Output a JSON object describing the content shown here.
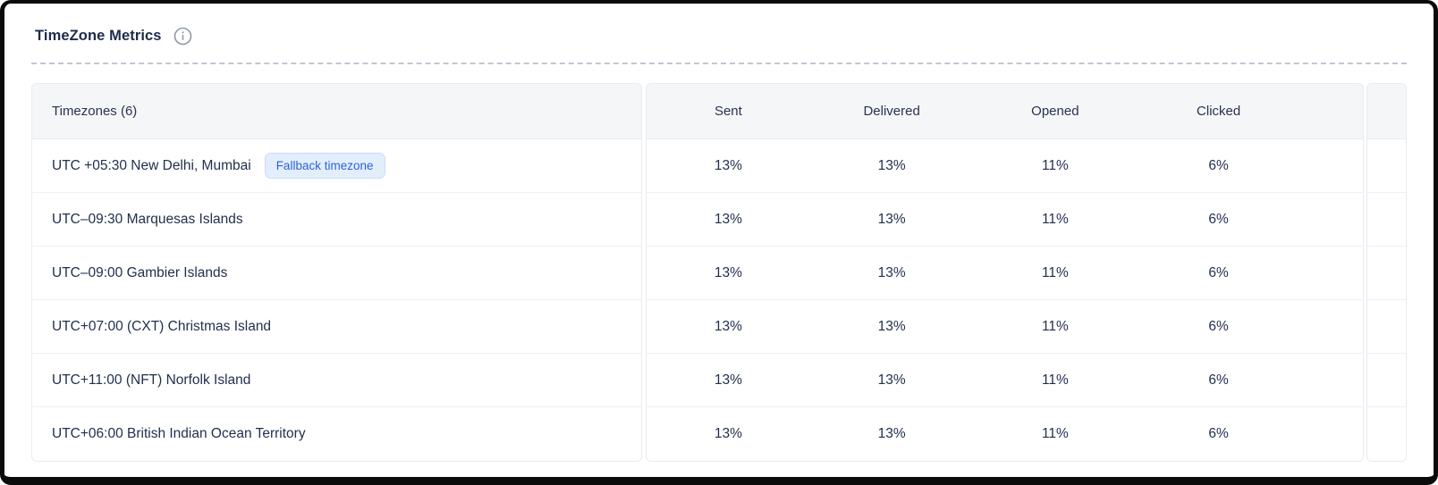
{
  "page": {
    "title": "TimeZone Metrics"
  },
  "table": {
    "timezones_header": "Timezones (6)",
    "columns": [
      "Sent",
      "Delivered",
      "Opened",
      "Clicked"
    ],
    "fallback_badge_label": "Fallback timezone",
    "rows": [
      {
        "timezone": "UTC +05:30 New Delhi, Mumbai",
        "fallback": true,
        "sent": "13%",
        "delivered": "13%",
        "opened": "11%",
        "clicked": "6%"
      },
      {
        "timezone": "UTC–09:30 Marquesas Islands",
        "fallback": false,
        "sent": "13%",
        "delivered": "13%",
        "opened": "11%",
        "clicked": "6%"
      },
      {
        "timezone": "UTC–09:00 Gambier Islands",
        "fallback": false,
        "sent": "13%",
        "delivered": "13%",
        "opened": "11%",
        "clicked": "6%"
      },
      {
        "timezone": "UTC+07:00 (CXT) Christmas Island",
        "fallback": false,
        "sent": "13%",
        "delivered": "13%",
        "opened": "11%",
        "clicked": "6%"
      },
      {
        "timezone": "UTC+11:00 (NFT) Norfolk Island",
        "fallback": false,
        "sent": "13%",
        "delivered": "13%",
        "opened": "11%",
        "clicked": "6%"
      },
      {
        "timezone": "UTC+06:00 British Indian Ocean Territory",
        "fallback": false,
        "sent": "13%",
        "delivered": "13%",
        "opened": "11%",
        "clicked": "6%"
      }
    ]
  },
  "colors": {
    "text_primary": "#22304e",
    "header_bg": "#f5f6f8",
    "badge_bg": "#e3eefc",
    "badge_text": "#2e62d9",
    "badge_border": "#c8dcf8",
    "divider_dashed": "#bfc8d2",
    "row_separator": "#eef1f5",
    "frame": "#0b0b0b"
  }
}
